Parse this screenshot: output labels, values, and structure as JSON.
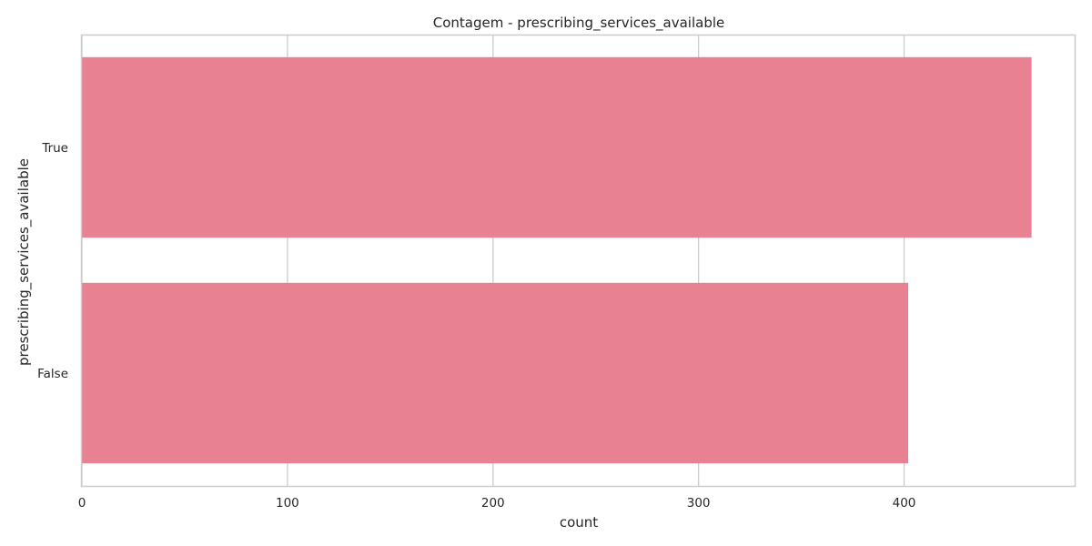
{
  "chart_data": {
    "type": "bar",
    "orientation": "horizontal",
    "title": "Contagem - prescribing_services_available",
    "xlabel": "count",
    "ylabel": "prescribing_services_available",
    "categories": [
      "True",
      "False"
    ],
    "values": [
      462,
      402
    ],
    "xlim": [
      0,
      483
    ],
    "xticks": [
      0,
      100,
      200,
      300,
      400
    ],
    "grid": true,
    "bar_color": "#e88192",
    "grid_color": "#cccccc",
    "spine_color": "#cccccc"
  }
}
